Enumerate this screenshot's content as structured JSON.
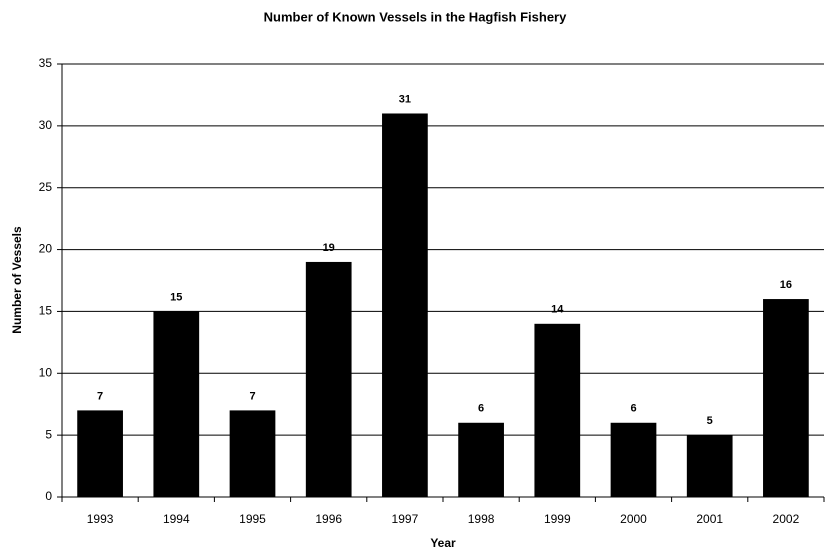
{
  "chart_data": {
    "type": "bar",
    "title": "Number of Known Vessels in the Hagfish Fishery",
    "x_label": "Year",
    "y_label": "Number of Vessels",
    "categories": [
      "1993",
      "1994",
      "1995",
      "1996",
      "1997",
      "1998",
      "1999",
      "2000",
      "2001",
      "2002"
    ],
    "values": [
      7,
      15,
      7,
      19,
      31,
      6,
      14,
      6,
      5,
      16
    ],
    "color": "#000000",
    "ylim": [
      0,
      35
    ],
    "yticks": [
      0,
      5,
      10,
      15,
      20,
      25,
      30,
      35
    ],
    "grid": true
  }
}
